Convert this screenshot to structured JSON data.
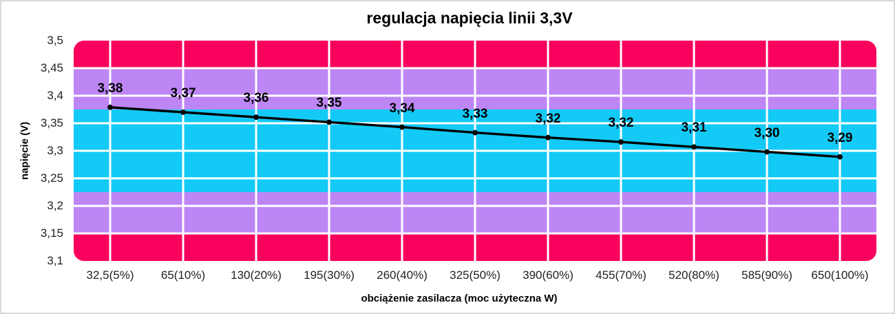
{
  "page": {
    "background": "#ffffff",
    "frame_border_color": "#d9d9d9"
  },
  "chart_data": {
    "type": "line",
    "title": "regulacja napięcia linii 3,3V",
    "xlabel": "obciążenie zasilacza (moc użyteczna W)",
    "ylabel": "napięcie (V)",
    "categories": [
      "32,5(5%)",
      "65(10%)",
      "130(20%)",
      "195(30%)",
      "260(40%)",
      "325(50%)",
      "390(60%)",
      "455(70%)",
      "520(80%)",
      "585(90%)",
      "650(100%)"
    ],
    "series": [
      {
        "name": "napięcie linii 3,3V",
        "values": [
          3.379,
          3.37,
          3.361,
          3.352,
          3.343,
          3.333,
          3.324,
          3.316,
          3.307,
          3.298,
          3.289
        ],
        "point_labels": [
          "3,38",
          "3,37",
          "3,36",
          "3,35",
          "3,34",
          "3,33",
          "3,32",
          "3,32",
          "3,31",
          "3,30",
          "3,29"
        ],
        "line_color": "#000000",
        "marker": "circle"
      }
    ],
    "ylim": [
      3.1,
      3.5
    ],
    "yticks": [
      {
        "value": 3.5,
        "label": "3,5"
      },
      {
        "value": 3.45,
        "label": "3,45"
      },
      {
        "value": 3.4,
        "label": "3,4"
      },
      {
        "value": 3.35,
        "label": "3,35"
      },
      {
        "value": 3.3,
        "label": "3,3"
      },
      {
        "value": 3.25,
        "label": "3,25"
      },
      {
        "value": 3.2,
        "label": "3,2"
      },
      {
        "value": 3.15,
        "label": "3,15"
      },
      {
        "value": 3.1,
        "label": "3,1"
      }
    ],
    "grid": {
      "show": true,
      "color": "#ffffff"
    },
    "tolerance_bands": [
      {
        "from": 3.45,
        "to": 3.5,
        "color": "#F8025E"
      },
      {
        "from": 3.375,
        "to": 3.45,
        "color": "#BD86F4"
      },
      {
        "from": 3.225,
        "to": 3.375,
        "color": "#13CAF6"
      },
      {
        "from": 3.15,
        "to": 3.225,
        "color": "#BD86F4"
      },
      {
        "from": 3.1,
        "to": 3.15,
        "color": "#F8025E"
      }
    ],
    "legend": {
      "show": false
    }
  }
}
